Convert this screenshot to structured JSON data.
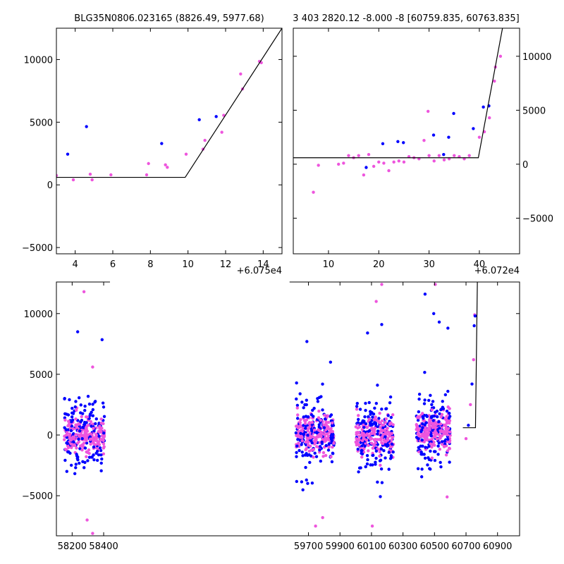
{
  "colors": {
    "series_a": "#0000ff",
    "series_b": "#ee55dd",
    "fit_line": "#000000"
  },
  "chart_data": [
    {
      "type": "scatter",
      "title": "BLG35N0806.023165 (8826.49, 5977.68)",
      "x_offset_label": "+6.075e4",
      "xlim": [
        3,
        15
      ],
      "ylim": [
        -5500,
        12500
      ],
      "xticks": [
        4,
        6,
        8,
        10,
        12,
        14
      ],
      "yticks": [
        -5000,
        0,
        5000,
        10000
      ],
      "y_axis_side": "left",
      "series": [
        {
          "points": [
            [
              3.6,
              2450
            ],
            [
              4.6,
              4650
            ],
            [
              8.6,
              3300
            ],
            [
              10.6,
              5200
            ],
            [
              11.5,
              5450
            ]
          ]
        },
        {
          "points": [
            [
              3.0,
              750
            ],
            [
              3.9,
              400
            ],
            [
              4.8,
              850
            ],
            [
              4.9,
              400
            ],
            [
              5.9,
              800
            ],
            [
              7.8,
              800
            ],
            [
              7.9,
              1700
            ],
            [
              8.8,
              1600
            ],
            [
              8.9,
              1400
            ],
            [
              9.9,
              2450
            ],
            [
              10.8,
              2850
            ],
            [
              10.9,
              3550
            ],
            [
              11.8,
              4200
            ],
            [
              11.9,
              5550
            ],
            [
              12.8,
              8850
            ],
            [
              12.9,
              7650
            ],
            [
              13.8,
              9850
            ],
            [
              13.9,
              9750
            ]
          ]
        }
      ],
      "fit_line": [
        [
          3,
          600
        ],
        [
          9.85,
          600
        ],
        [
          15,
          12500
        ]
      ]
    },
    {
      "type": "scatter",
      "title": "3 403 2820.12 -8.000 -8 [60759.835, 60763.835]",
      "x_offset_label": "+6.072e4",
      "xlim": [
        3,
        48
      ],
      "ylim": [
        -8300,
        12600
      ],
      "xticks": [
        10,
        20,
        30,
        40
      ],
      "yticks": [
        -5000,
        0,
        5000,
        10000
      ],
      "y_axis_side": "right",
      "series": [
        {
          "points": [
            [
              17.5,
              -300
            ],
            [
              20.8,
              1900
            ],
            [
              23.8,
              2100
            ],
            [
              24.9,
              2000
            ],
            [
              30.9,
              2700
            ],
            [
              32.9,
              900
            ],
            [
              33.9,
              2500
            ],
            [
              34.9,
              4700
            ],
            [
              38.8,
              3300
            ],
            [
              40.8,
              5300
            ],
            [
              41.9,
              5400
            ]
          ]
        },
        {
          "points": [
            [
              7,
              -2600
            ],
            [
              8,
              -100
            ],
            [
              12,
              0
            ],
            [
              13,
              100
            ],
            [
              14,
              800
            ],
            [
              15,
              600
            ],
            [
              16,
              800
            ],
            [
              17,
              -1000
            ],
            [
              18,
              900
            ],
            [
              19,
              -200
            ],
            [
              20,
              200
            ],
            [
              21,
              100
            ],
            [
              22,
              -600
            ],
            [
              23,
              200
            ],
            [
              24,
              300
            ],
            [
              25,
              200
            ],
            [
              26,
              700
            ],
            [
              27,
              600
            ],
            [
              28,
              500
            ],
            [
              29,
              2200
            ],
            [
              29.8,
              4900
            ],
            [
              30,
              800
            ],
            [
              31,
              300
            ],
            [
              32,
              800
            ],
            [
              33,
              400
            ],
            [
              34,
              500
            ],
            [
              35,
              800
            ],
            [
              36,
              700
            ],
            [
              37,
              500
            ],
            [
              38,
              800
            ],
            [
              40,
              2500
            ],
            [
              41,
              3000
            ],
            [
              42,
              4300
            ],
            [
              43,
              7700
            ],
            [
              43.2,
              9000
            ],
            [
              44.2,
              10000
            ]
          ]
        }
      ],
      "fit_line": [
        [
          3,
          600
        ],
        [
          39.8,
          600
        ],
        [
          44.6,
          12600
        ]
      ]
    },
    {
      "type": "scatter",
      "title": "",
      "xlim": [
        58100,
        61040
      ],
      "ylim": [
        -8300,
        12600
      ],
      "xticks": [
        58200,
        58400,
        59700,
        59900,
        60100,
        60300,
        60500,
        60700,
        60900
      ],
      "yticks": [
        -5000,
        0,
        5000,
        10000
      ],
      "y_axis_side": "left",
      "x_axis_break": {
        "from": 58440,
        "to": 59580
      },
      "season_clusters": [
        {
          "x_range": [
            58150,
            58405
          ],
          "y_center": 0
        },
        {
          "x_range": [
            59620,
            59865
          ],
          "y_center": 0
        },
        {
          "x_range": [
            60000,
            60240
          ],
          "y_center": 0
        },
        {
          "x_range": [
            60385,
            60600
          ],
          "y_center": 200
        }
      ],
      "outliers_a": [
        [
          58235,
          8500
        ],
        [
          58390,
          7850
        ],
        [
          59690,
          7700
        ],
        [
          59840,
          6000
        ],
        [
          60075,
          8400
        ],
        [
          60165,
          9100
        ],
        [
          60440,
          11600
        ],
        [
          60495,
          10000
        ],
        [
          60530,
          9300
        ],
        [
          60585,
          8800
        ]
      ],
      "outliers_b": [
        [
          58275,
          11800
        ],
        [
          58330,
          5600
        ],
        [
          58295,
          -7000
        ],
        [
          58330,
          -8100
        ],
        [
          59790,
          -6800
        ],
        [
          59745,
          -7500
        ],
        [
          60105,
          -7500
        ],
        [
          60130,
          11000
        ],
        [
          60165,
          12400
        ],
        [
          60505,
          12400
        ],
        [
          60580,
          -5100
        ]
      ],
      "rise_points": [
        [
          60700,
          -300
        ],
        [
          60715,
          800
        ],
        [
          60728,
          2500
        ],
        [
          60738,
          4200
        ],
        [
          60748,
          6200
        ],
        [
          60752,
          9000
        ],
        [
          60755,
          9900
        ],
        [
          60758,
          9800
        ]
      ],
      "fit_line": [
        [
          60680,
          600
        ],
        [
          60760,
          600
        ],
        [
          60772,
          12600
        ]
      ]
    }
  ]
}
